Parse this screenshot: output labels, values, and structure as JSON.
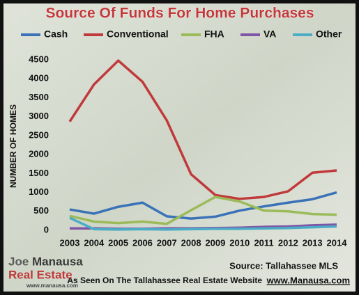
{
  "chart_data": {
    "type": "line",
    "title": "Source Of Funds For Home Purchases",
    "y_label": "NUMBER OF HOMES",
    "categories": [
      "2003",
      "2004",
      "2005",
      "2006",
      "2007",
      "2008",
      "2009",
      "2010",
      "2011",
      "2012",
      "2013",
      "2014"
    ],
    "series": [
      {
        "name": "Cash",
        "color": "#3a72b8",
        "values": [
          550,
          440,
          620,
          730,
          370,
          310,
          360,
          520,
          630,
          730,
          820,
          1000
        ]
      },
      {
        "name": "Conventional",
        "color": "#c0393b",
        "values": [
          2870,
          3850,
          4480,
          3920,
          2900,
          1480,
          930,
          830,
          880,
          1030,
          1520,
          1580
        ]
      },
      {
        "name": "FHA",
        "color": "#9bbb59",
        "values": [
          380,
          230,
          190,
          230,
          170,
          530,
          880,
          760,
          520,
          500,
          430,
          410
        ]
      },
      {
        "name": "VA",
        "color": "#7f55a6",
        "values": [
          50,
          50,
          40,
          40,
          50,
          50,
          60,
          70,
          90,
          100,
          130,
          150
        ]
      },
      {
        "name": "Other",
        "color": "#4bacc6",
        "values": [
          330,
          30,
          20,
          30,
          20,
          30,
          40,
          40,
          50,
          60,
          80,
          100
        ]
      }
    ],
    "ylim": [
      0,
      4500
    ],
    "yticks": [
      0,
      500,
      1000,
      1500,
      2000,
      2500,
      3000,
      3500,
      4000,
      4500
    ],
    "grid": false,
    "legend": "top",
    "source": "Source: Tallahassee MLS",
    "footer": "As Seen On The Tallahassee Real Estate Website",
    "footer_link": "www.Manausa.com",
    "logo": {
      "name_1": "Joe",
      "name_2": "Manausa",
      "line_2": "Real Estate",
      "url": "www.manausa.com"
    }
  }
}
